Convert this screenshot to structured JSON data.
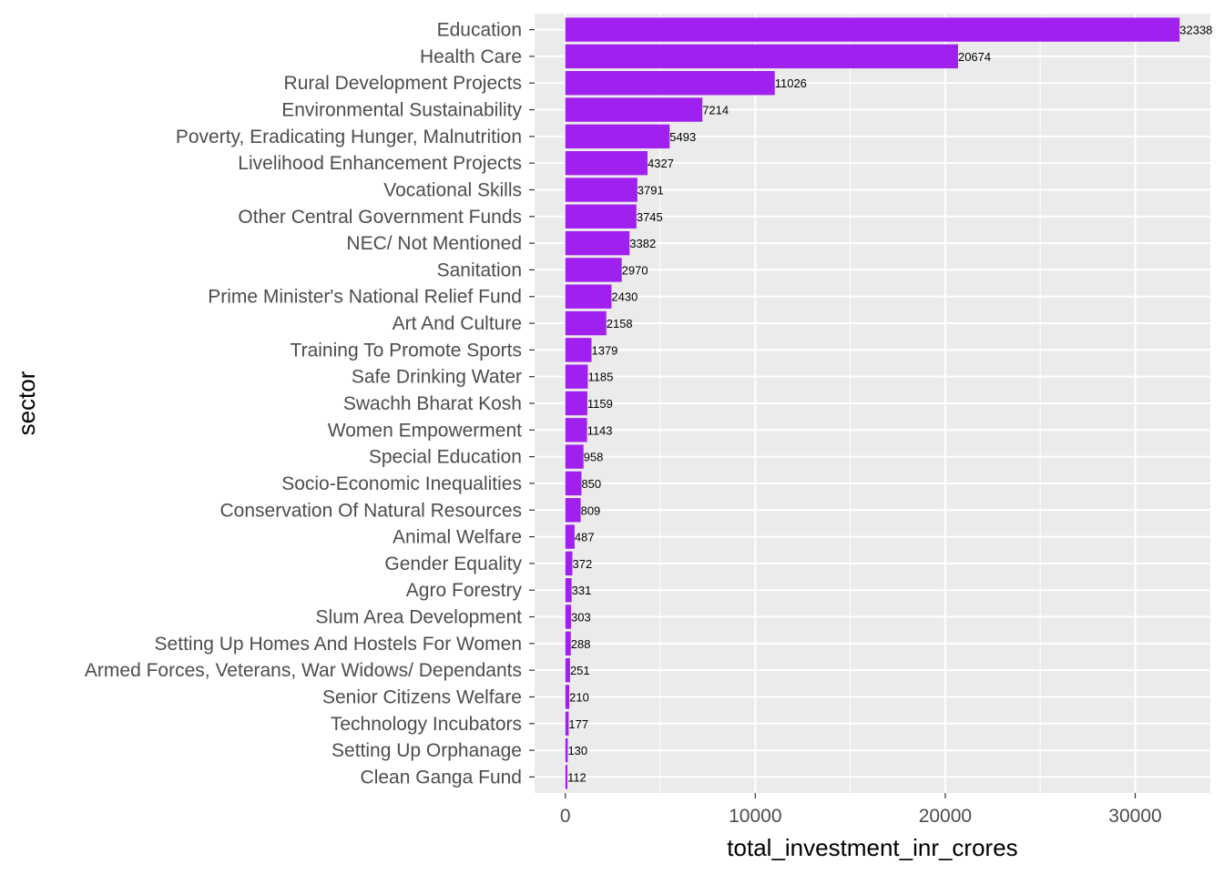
{
  "chart_data": {
    "type": "bar",
    "orientation": "horizontal",
    "categories": [
      "Education",
      "Health Care",
      "Rural Development Projects",
      "Environmental Sustainability",
      "Poverty, Eradicating Hunger, Malnutrition",
      "Livelihood Enhancement Projects",
      "Vocational Skills",
      "Other Central Government Funds",
      "NEC/ Not Mentioned",
      "Sanitation",
      "Prime Minister's National Relief Fund",
      "Art And Culture",
      "Training To Promote Sports",
      "Safe Drinking Water",
      "Swachh Bharat Kosh",
      "Women Empowerment",
      "Special Education",
      "Socio-Economic Inequalities",
      "Conservation Of Natural Resources",
      "Animal Welfare",
      "Gender Equality",
      "Agro Forestry",
      "Slum Area Development",
      "Setting Up Homes And Hostels For Women",
      "Armed Forces, Veterans, War Widows/ Dependants",
      "Senior Citizens Welfare",
      "Technology Incubators",
      "Setting Up Orphanage",
      "Clean Ganga Fund"
    ],
    "values": [
      32338,
      20674,
      11026,
      7214,
      5493,
      4327,
      3791,
      3745,
      3382,
      2970,
      2430,
      2158,
      1379,
      1185,
      1159,
      1143,
      958,
      850,
      809,
      487,
      372,
      331,
      303,
      288,
      251,
      210,
      177,
      130,
      112
    ],
    "data_labels": [
      "32338",
      "20674",
      "11026",
      "7214",
      "5493",
      "4327",
      "3791",
      "3745",
      "3382",
      "2970",
      "2430",
      "2158",
      "1379",
      "1185",
      "1159",
      "1143",
      "958",
      "850",
      "809",
      "487",
      "372",
      "331",
      "303",
      "288",
      "251",
      "210",
      "177",
      "130",
      "112"
    ],
    "xlabel": "total_investment_inr_crores",
    "ylabel": "sector",
    "x_ticks": [
      0,
      10000,
      20000,
      30000
    ],
    "x_tick_labels": [
      "0",
      "10000",
      "20000",
      "30000"
    ],
    "xlim": [
      -1617,
      33955
    ],
    "grid": true,
    "legend": "none",
    "colors": {
      "bar": "#a020f0",
      "panel": "#ebebeb",
      "grid": "#ffffff",
      "tick_text": "#4d4d4d"
    }
  }
}
